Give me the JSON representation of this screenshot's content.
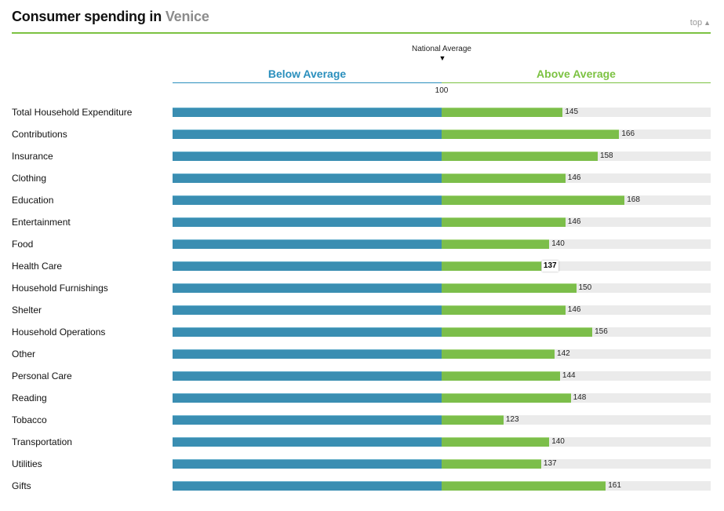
{
  "header": {
    "title_prefix": "Consumer spending in",
    "city": "Venice",
    "top_link": "top",
    "top_arrow": "▲"
  },
  "legend": {
    "national_average": "National Average",
    "marker": "▼",
    "below": "Below Average",
    "above": "Above Average",
    "baseline": "100"
  },
  "colors": {
    "below": "#3a8eb2",
    "above": "#7cbe4a",
    "accent_green": "#7cc242",
    "accent_blue": "#2a8fbd",
    "track": "#ebebeb"
  },
  "chart_data": {
    "type": "bar",
    "orientation": "horizontal",
    "baseline": 100,
    "xlim": [
      0,
      200
    ],
    "categories": [
      "Total Household Expenditure",
      "Contributions",
      "Insurance",
      "Clothing",
      "Education",
      "Entertainment",
      "Food",
      "Health Care",
      "Household Furnishings",
      "Shelter",
      "Household Operations",
      "Other",
      "Personal Care",
      "Reading",
      "Tobacco",
      "Transportation",
      "Utilities",
      "Gifts"
    ],
    "values": [
      145,
      166,
      158,
      146,
      168,
      146,
      140,
      137,
      150,
      146,
      156,
      142,
      144,
      148,
      123,
      140,
      137,
      161
    ],
    "highlighted_index": 7
  }
}
